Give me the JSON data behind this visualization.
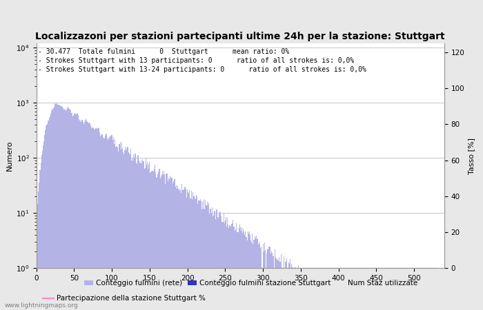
{
  "title": "Localizzazoni per stazioni partecipanti ultime 24h per la stazione: Stuttgart",
  "ylabel_left": "Numero",
  "ylabel_right": "Tasso [%]",
  "annotation_lines": [
    "30.477  Totale fulmini      0  Stuttgart      mean ratio: 0%",
    "Strokes Stuttgart with 13 participants: 0      ratio of all strokes is: 0,0%",
    "Strokes Stuttgart with 13-24 participants: 0      ratio of all strokes is: 0,0%"
  ],
  "xlim": [
    0,
    540
  ],
  "ylim_right": [
    0,
    125
  ],
  "bar_color_light": "#b3b3e6",
  "bar_color_dark": "#3333bb",
  "line_color": "#ff88cc",
  "background_color": "#e8e8e8",
  "plot_bg_color": "#ffffff",
  "grid_color": "#bbbbbb",
  "title_fontsize": 10,
  "axis_fontsize": 8,
  "tick_fontsize": 7.5,
  "annotation_fontsize": 7,
  "watermark": "www.lightningmaps.org",
  "legend_entries": [
    "Conteggio fulmini (rete)",
    "Conteggio fulmini stazione Stuttgart",
    "Num Staz utilizzate",
    "Partecipazione della stazione Stuttgart %"
  ]
}
